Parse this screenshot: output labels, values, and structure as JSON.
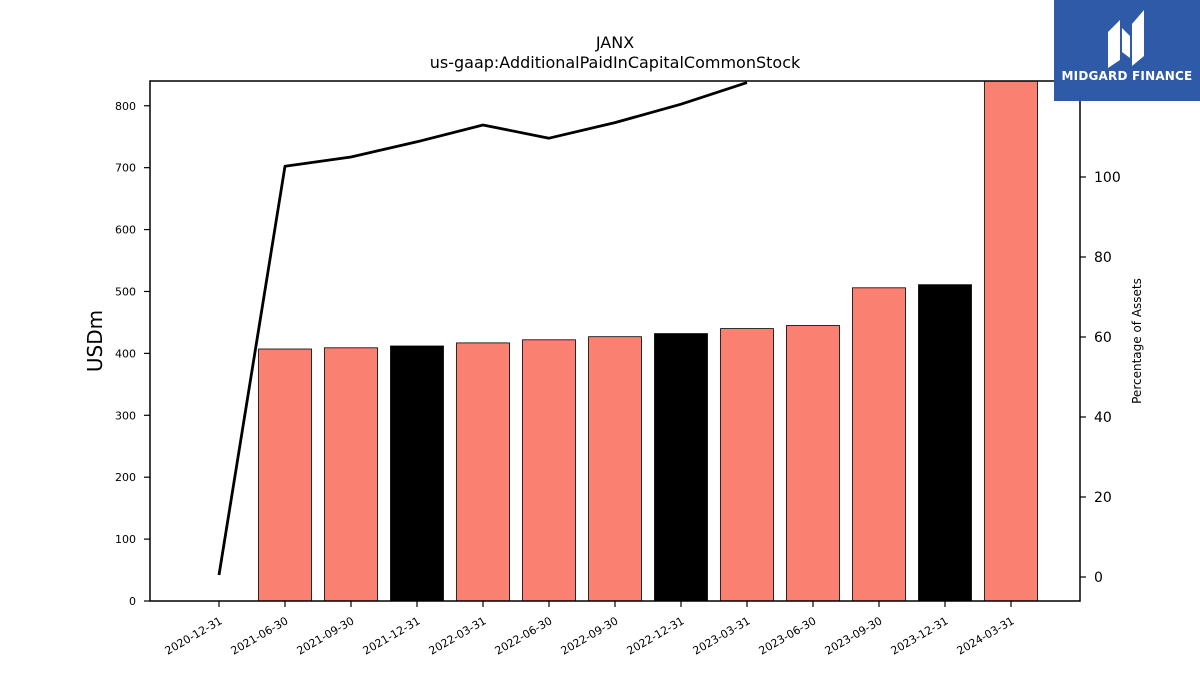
{
  "chart_data": {
    "type": "bar",
    "title": "JANX",
    "subtitle": "us-gaap:AdditionalPaidInCapitalCommonStock",
    "ylabel": "USDm",
    "y2label": "Percentage of Assets",
    "ylim": [
      0,
      840
    ],
    "y2lim": [
      -6,
      124
    ],
    "yticks": [
      0,
      100,
      200,
      300,
      400,
      500,
      600,
      700,
      800
    ],
    "y2ticks": [
      0,
      20,
      40,
      60,
      80,
      100
    ],
    "categories": [
      "2020-12-31",
      "2021-06-30",
      "2021-09-30",
      "2021-12-31",
      "2022-03-31",
      "2022-06-30",
      "2022-09-30",
      "2022-12-31",
      "2023-03-31",
      "2023-06-30",
      "2023-09-30",
      "2023-12-31",
      "2024-03-31"
    ],
    "values": [
      0,
      407,
      409,
      412,
      417,
      422,
      427,
      432,
      440,
      445,
      506,
      511,
      840
    ],
    "bar_colors": [
      "#fa8072",
      "#fa8072",
      "#fa8072",
      "#000000",
      "#fa8072",
      "#fa8072",
      "#fa8072",
      "#000000",
      "#fa8072",
      "#fa8072",
      "#fa8072",
      "#000000",
      "#fa8072"
    ],
    "series": [
      {
        "values": [
          0,
          407,
          409,
          412,
          417,
          422,
          427,
          432,
          440,
          445,
          506,
          511,
          840
        ]
      },
      {
        "axis": "right",
        "type": "line",
        "color": "#000000",
        "values": [
          0.5,
          102.7,
          105,
          108.8,
          113,
          109.7,
          113.6,
          118.2,
          123.6,
          null,
          null,
          null,
          null
        ]
      }
    ],
    "grid": false
  },
  "logo": {
    "text": "MIDGARD FINANCE",
    "color": "#2f5aa8"
  }
}
